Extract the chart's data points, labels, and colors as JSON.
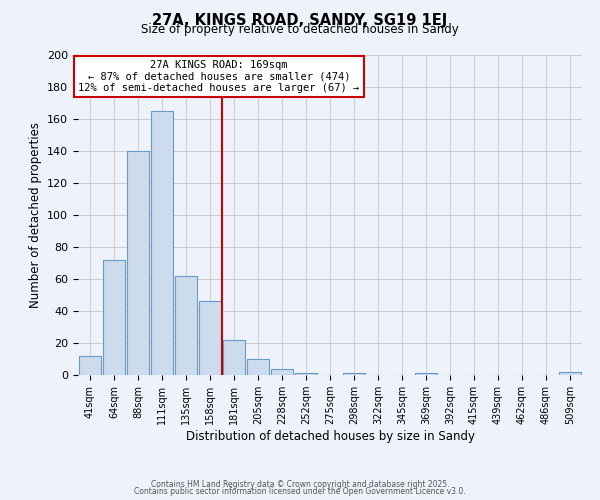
{
  "title": "27A, KINGS ROAD, SANDY, SG19 1EJ",
  "subtitle": "Size of property relative to detached houses in Sandy",
  "xlabel": "Distribution of detached houses by size in Sandy",
  "ylabel": "Number of detached properties",
  "bar_labels": [
    "41sqm",
    "64sqm",
    "88sqm",
    "111sqm",
    "135sqm",
    "158sqm",
    "181sqm",
    "205sqm",
    "228sqm",
    "252sqm",
    "275sqm",
    "298sqm",
    "322sqm",
    "345sqm",
    "369sqm",
    "392sqm",
    "415sqm",
    "439sqm",
    "462sqm",
    "486sqm",
    "509sqm"
  ],
  "bar_values": [
    12,
    72,
    140,
    165,
    62,
    46,
    22,
    10,
    4,
    1,
    0,
    1,
    0,
    0,
    1,
    0,
    0,
    0,
    0,
    0,
    2
  ],
  "bar_color": "#cddcec",
  "bar_edge_color": "#6699cc",
  "vline_index": 6,
  "vline_color": "#cc0000",
  "ylim": [
    0,
    200
  ],
  "yticks": [
    0,
    20,
    40,
    60,
    80,
    100,
    120,
    140,
    160,
    180,
    200
  ],
  "grid_color": "#cccccc",
  "background_color": "#eef2fa",
  "annotation_title": "27A KINGS ROAD: 169sqm",
  "annotation_line1": "← 87% of detached houses are smaller (474)",
  "annotation_line2": "12% of semi-detached houses are larger (67) →",
  "annotation_box_color": "#ffffff",
  "annotation_box_edge": "#cc0000",
  "footer1": "Contains HM Land Registry data © Crown copyright and database right 2025.",
  "footer2": "Contains public sector information licensed under the Open Government Licence v3.0."
}
